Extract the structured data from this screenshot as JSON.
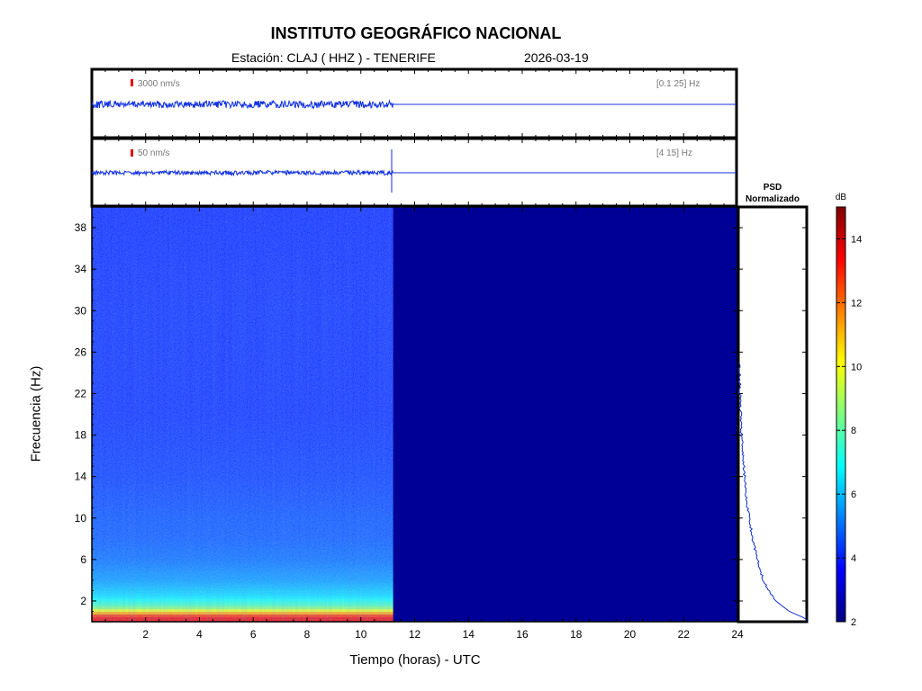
{
  "header": {
    "institution": "INSTITUTO GEOGRÁFICO NACIONAL",
    "station_text": "Estación:  CLAJ ( HHZ ) - TENERIFE",
    "date": "2026-03-19"
  },
  "traces": [
    {
      "scale_label": "3000 nm/s",
      "band_label": "[0.1 25] Hz"
    },
    {
      "scale_label": "50 nm/s",
      "band_label": "[4 15] Hz"
    }
  ],
  "psd": {
    "title_line1": "PSD",
    "title_line2": "Normalizado"
  },
  "colorbar": {
    "unit": "dB",
    "min": 2,
    "max": 15,
    "ticks": [
      2,
      4,
      6,
      8,
      10,
      12,
      14
    ]
  },
  "chart_data": {
    "type": "heatmap",
    "title": "INSTITUTO GEOGRÁFICO NACIONAL",
    "xlabel": "Tiempo (horas) - UTC",
    "ylabel": "Frecuencia  (Hz)",
    "xlim": [
      0,
      24
    ],
    "ylim": [
      0,
      40
    ],
    "x_ticks": [
      2,
      4,
      6,
      8,
      10,
      12,
      14,
      16,
      18,
      20,
      22,
      24
    ],
    "y_ticks": [
      2,
      6,
      10,
      14,
      18,
      22,
      26,
      30,
      34,
      38
    ],
    "data_end_hour": 11.2,
    "spectrum_profile_db": [
      {
        "freq": 0.5,
        "db": 13.5
      },
      {
        "freq": 1.0,
        "db": 10.5
      },
      {
        "freq": 1.5,
        "db": 8.0
      },
      {
        "freq": 2.5,
        "db": 6.5
      },
      {
        "freq": 4,
        "db": 5.6
      },
      {
        "freq": 6,
        "db": 5.0
      },
      {
        "freq": 8,
        "db": 4.7
      },
      {
        "freq": 10,
        "db": 4.6
      },
      {
        "freq": 14,
        "db": 4.3
      },
      {
        "freq": 20,
        "db": 4.1
      },
      {
        "freq": 30,
        "db": 4.1
      },
      {
        "freq": 40,
        "db": 4.0
      }
    ],
    "background_db": 2.3,
    "psd_normalized": [
      {
        "freq": 0.3,
        "value": 1.0
      },
      {
        "freq": 1,
        "value": 0.75
      },
      {
        "freq": 2,
        "value": 0.55
      },
      {
        "freq": 3,
        "value": 0.44
      },
      {
        "freq": 4,
        "value": 0.36
      },
      {
        "freq": 6,
        "value": 0.27
      },
      {
        "freq": 8,
        "value": 0.2
      },
      {
        "freq": 10,
        "value": 0.15
      },
      {
        "freq": 12,
        "value": 0.11
      },
      {
        "freq": 14,
        "value": 0.08
      },
      {
        "freq": 16,
        "value": 0.055
      },
      {
        "freq": 18,
        "value": 0.035
      },
      {
        "freq": 20,
        "value": 0.02
      },
      {
        "freq": 22,
        "value": 0.01
      },
      {
        "freq": 24,
        "value": 0.004
      },
      {
        "freq": 25,
        "value": 0.0
      }
    ],
    "grid": false
  }
}
